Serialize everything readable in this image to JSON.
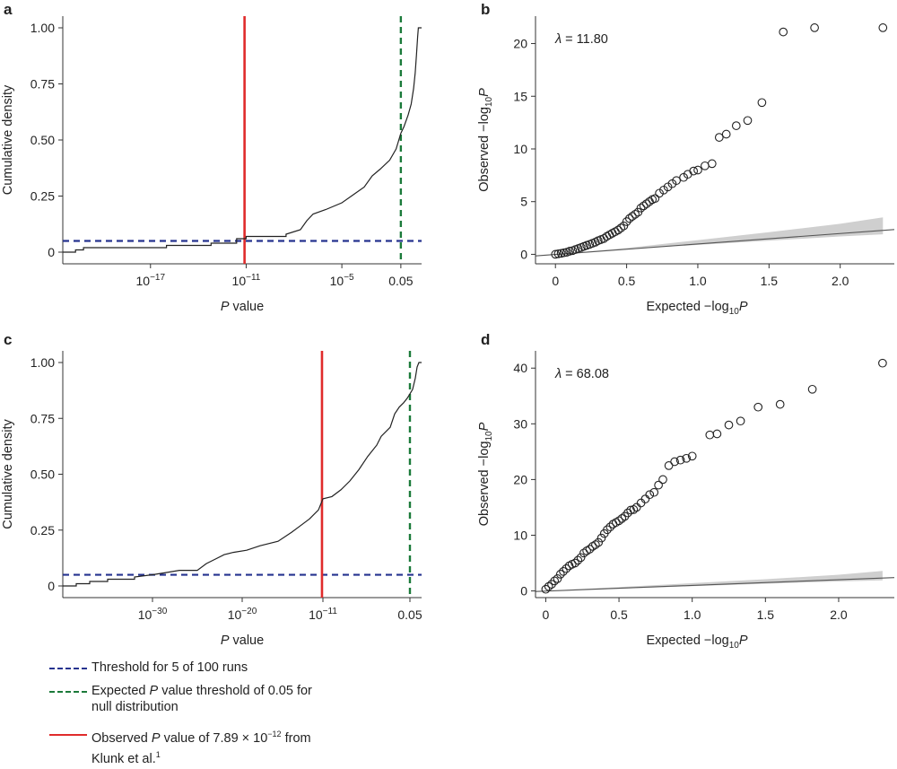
{
  "chart_data": [
    {
      "panel": "a",
      "type": "line",
      "subtype": "empirical-cumulative-distribution",
      "ylabel": "Cumulative density",
      "xlabel_italic": "P",
      "xlabel_rest": " value",
      "x_scale": "log10",
      "xlim_log10": [
        -22.5,
        0
      ],
      "ylim": [
        0,
        1
      ],
      "xticks": [
        {
          "log10": -17,
          "base": "10",
          "exp": "−17"
        },
        {
          "log10": -11,
          "base": "10",
          "exp": "−11"
        },
        {
          "log10": -5,
          "base": "10",
          "exp": "−5"
        },
        {
          "log10": -1.301,
          "base": "0.05",
          "exp": ""
        }
      ],
      "yticks": [
        {
          "value": 0,
          "label": "0"
        },
        {
          "value": 0.25,
          "label": "0.25"
        },
        {
          "value": 0.5,
          "label": "0.50"
        },
        {
          "value": 0.75,
          "label": "0.75"
        },
        {
          "value": 1.0,
          "label": "1.00"
        }
      ],
      "series": [
        {
          "name": "Cumulative density",
          "points": [
            [
              -22.5,
              0
            ],
            [
              -21.7,
              0
            ],
            [
              -21.7,
              0.01
            ],
            [
              -21.2,
              0.01
            ],
            [
              -21.2,
              0.02
            ],
            [
              -16,
              0.02
            ],
            [
              -16,
              0.03
            ],
            [
              -13.2,
              0.03
            ],
            [
              -13.2,
              0.04
            ],
            [
              -11.6,
              0.04
            ],
            [
              -11.6,
              0.06
            ],
            [
              -11,
              0.06
            ],
            [
              -11,
              0.07
            ],
            [
              -8.5,
              0.07
            ],
            [
              -8.5,
              0.08
            ],
            [
              -7.6,
              0.1
            ],
            [
              -7.2,
              0.14
            ],
            [
              -6.8,
              0.17
            ],
            [
              -6,
              0.19
            ],
            [
              -5,
              0.22
            ],
            [
              -4.2,
              0.26
            ],
            [
              -3.6,
              0.29
            ],
            [
              -3.1,
              0.34
            ],
            [
              -2.6,
              0.37
            ],
            [
              -2,
              0.41
            ],
            [
              -1.6,
              0.46
            ],
            [
              -1.3,
              0.53
            ],
            [
              -1.1,
              0.56
            ],
            [
              -0.85,
              0.61
            ],
            [
              -0.65,
              0.66
            ],
            [
              -0.5,
              0.73
            ],
            [
              -0.4,
              0.8
            ],
            [
              -0.32,
              0.88
            ],
            [
              -0.25,
              0.96
            ],
            [
              -0.2,
              1.0
            ],
            [
              0,
              1.0
            ]
          ]
        }
      ],
      "hlines": [
        {
          "y": 0.05,
          "name": "Threshold for 5 of 100 runs",
          "color": "#26338f"
        }
      ],
      "vlines": [
        {
          "x_log10": -11.103,
          "name": "Observed P value of 7.89 × 10−12",
          "color": "#e02b2b",
          "style": "solid"
        },
        {
          "x_log10": -1.301,
          "name": "Expected P value threshold of 0.05",
          "color": "#1b7a3a",
          "style": "dashed"
        }
      ]
    },
    {
      "panel": "b",
      "type": "scatter",
      "subtype": "qq-plot",
      "annotation_symbol": "λ",
      "annotation_value": " = 11.80",
      "xlabel_text": "Expected −log",
      "xlabel_sub": "10",
      "xlabel_italic": "P",
      "ylabel_text": "Observed −log",
      "ylabel_sub": "10",
      "ylabel_italic": "P",
      "xlim": [
        -0.14,
        2.38
      ],
      "ylim": [
        -0.9,
        22.6
      ],
      "xticks": [
        {
          "value": 0,
          "label": "0"
        },
        {
          "value": 0.5,
          "label": "0.5"
        },
        {
          "value": 1.0,
          "label": "1.0"
        },
        {
          "value": 1.5,
          "label": "1.5"
        },
        {
          "value": 2.0,
          "label": "2.0"
        }
      ],
      "yticks": [
        {
          "value": 0,
          "label": "0"
        },
        {
          "value": 5,
          "label": "5"
        },
        {
          "value": 10,
          "label": "10"
        },
        {
          "value": 15,
          "label": "15"
        },
        {
          "value": 20,
          "label": "20"
        }
      ],
      "expected_line": {
        "x": [
          -0.14,
          2.38
        ],
        "y": [
          -0.15,
          2.35
        ]
      },
      "ci_band": {
        "x": [
          0,
          0.5,
          1.0,
          1.5,
          2.0,
          2.3
        ],
        "lower": [
          0,
          0.45,
          0.9,
          1.3,
          1.7,
          1.9
        ],
        "upper": [
          0,
          0.6,
          1.35,
          2.1,
          2.9,
          3.5
        ]
      },
      "points": {
        "x": [
          0.0,
          0.02,
          0.04,
          0.06,
          0.08,
          0.1,
          0.12,
          0.14,
          0.16,
          0.18,
          0.2,
          0.22,
          0.24,
          0.26,
          0.28,
          0.3,
          0.32,
          0.34,
          0.36,
          0.38,
          0.4,
          0.42,
          0.44,
          0.46,
          0.48,
          0.5,
          0.52,
          0.54,
          0.56,
          0.58,
          0.6,
          0.62,
          0.64,
          0.66,
          0.68,
          0.7,
          0.73,
          0.76,
          0.79,
          0.82,
          0.85,
          0.9,
          0.93,
          0.97,
          1.0,
          1.05,
          1.1,
          1.15,
          1.2,
          1.27,
          1.35,
          1.45,
          1.6,
          1.82,
          2.3
        ],
        "y": [
          0.0,
          0.05,
          0.1,
          0.15,
          0.2,
          0.3,
          0.35,
          0.45,
          0.55,
          0.65,
          0.75,
          0.85,
          0.95,
          1.05,
          1.15,
          1.3,
          1.4,
          1.5,
          1.7,
          1.85,
          2.0,
          2.15,
          2.3,
          2.5,
          2.7,
          3.1,
          3.4,
          3.6,
          3.8,
          4.0,
          4.4,
          4.6,
          4.8,
          5.0,
          5.2,
          5.3,
          5.8,
          6.1,
          6.4,
          6.7,
          7.0,
          7.3,
          7.6,
          7.9,
          8.0,
          8.4,
          8.6,
          11.1,
          11.4,
          12.2,
          12.7,
          14.4,
          21.1,
          21.5,
          21.5
        ]
      }
    },
    {
      "panel": "c",
      "type": "line",
      "subtype": "empirical-cumulative-distribution",
      "ylabel": "Cumulative density",
      "xlabel_italic": "P",
      "xlabel_rest": " value",
      "x_scale": "log10",
      "xlim_log10": [
        -40,
        0
      ],
      "ylim": [
        0,
        1
      ],
      "xticks": [
        {
          "log10": -30,
          "base": "10",
          "exp": "−30"
        },
        {
          "log10": -20,
          "base": "10",
          "exp": "−20"
        },
        {
          "log10": -11,
          "base": "10",
          "exp": "−11"
        },
        {
          "log10": -1.301,
          "base": "0.05",
          "exp": ""
        }
      ],
      "yticks": [
        {
          "value": 0,
          "label": "0"
        },
        {
          "value": 0.25,
          "label": "0.25"
        },
        {
          "value": 0.5,
          "label": "0.50"
        },
        {
          "value": 0.75,
          "label": "0.75"
        },
        {
          "value": 1.0,
          "label": "1.00"
        }
      ],
      "series": [
        {
          "name": "Cumulative density",
          "points": [
            [
              -40,
              0
            ],
            [
              -38.5,
              0
            ],
            [
              -38.5,
              0.01
            ],
            [
              -37,
              0.01
            ],
            [
              -37,
              0.02
            ],
            [
              -35,
              0.02
            ],
            [
              -35,
              0.03
            ],
            [
              -32,
              0.03
            ],
            [
              -32,
              0.04
            ],
            [
              -30,
              0.05
            ],
            [
              -28.5,
              0.06
            ],
            [
              -27,
              0.07
            ],
            [
              -25,
              0.07
            ],
            [
              -24,
              0.1
            ],
            [
              -23,
              0.12
            ],
            [
              -22,
              0.14
            ],
            [
              -21,
              0.15
            ],
            [
              -19.5,
              0.16
            ],
            [
              -18,
              0.18
            ],
            [
              -16,
              0.2
            ],
            [
              -14.5,
              0.24
            ],
            [
              -13.5,
              0.27
            ],
            [
              -12.5,
              0.3
            ],
            [
              -11.5,
              0.34
            ],
            [
              -11,
              0.39
            ],
            [
              -10,
              0.4
            ],
            [
              -9,
              0.43
            ],
            [
              -8,
              0.47
            ],
            [
              -7,
              0.52
            ],
            [
              -6,
              0.58
            ],
            [
              -5,
              0.63
            ],
            [
              -4.5,
              0.67
            ],
            [
              -3.5,
              0.71
            ],
            [
              -3,
              0.77
            ],
            [
              -2.5,
              0.8
            ],
            [
              -2,
              0.82
            ],
            [
              -1.6,
              0.84
            ],
            [
              -1.3,
              0.86
            ],
            [
              -1,
              0.88
            ],
            [
              -0.7,
              0.93
            ],
            [
              -0.5,
              0.98
            ],
            [
              -0.3,
              1.0
            ],
            [
              0,
              1.0
            ]
          ]
        }
      ],
      "hlines": [
        {
          "y": 0.05,
          "name": "Threshold for 5 of 100 runs",
          "color": "#26338f"
        }
      ],
      "vlines": [
        {
          "x_log10": -11.103,
          "name": "Observed P value of 7.89 × 10−12",
          "color": "#e02b2b",
          "style": "solid"
        },
        {
          "x_log10": -1.301,
          "name": "Expected P value threshold of 0.05",
          "color": "#1b7a3a",
          "style": "dashed"
        }
      ]
    },
    {
      "panel": "d",
      "type": "scatter",
      "subtype": "qq-plot",
      "annotation_symbol": "λ",
      "annotation_value": " = 68.08",
      "xlabel_text": "Expected −log",
      "xlabel_sub": "10",
      "xlabel_italic": "P",
      "ylabel_text": "Observed −log",
      "ylabel_sub": "10",
      "ylabel_italic": "P",
      "xlim": [
        -0.07,
        2.38
      ],
      "ylim": [
        -1.2,
        43.1
      ],
      "xticks": [
        {
          "value": 0,
          "label": "0"
        },
        {
          "value": 0.5,
          "label": "0.5"
        },
        {
          "value": 1.0,
          "label": "1.0"
        },
        {
          "value": 1.5,
          "label": "1.5"
        },
        {
          "value": 2.0,
          "label": "2.0"
        }
      ],
      "yticks": [
        {
          "value": 0,
          "label": "0"
        },
        {
          "value": 10,
          "label": "10"
        },
        {
          "value": 20,
          "label": "20"
        },
        {
          "value": 30,
          "label": "30"
        },
        {
          "value": 40,
          "label": "40"
        }
      ],
      "expected_line": {
        "x": [
          -0.07,
          2.38
        ],
        "y": [
          -0.1,
          2.4
        ]
      },
      "ci_band": {
        "x": [
          0,
          0.5,
          1.0,
          1.5,
          2.0,
          2.3
        ],
        "lower": [
          0,
          0.4,
          0.85,
          1.3,
          1.7,
          1.9
        ],
        "upper": [
          0,
          0.7,
          1.4,
          2.1,
          2.9,
          3.6
        ]
      },
      "points": {
        "x": [
          0.0,
          0.02,
          0.04,
          0.06,
          0.08,
          0.1,
          0.12,
          0.14,
          0.16,
          0.18,
          0.2,
          0.22,
          0.24,
          0.26,
          0.28,
          0.3,
          0.32,
          0.34,
          0.36,
          0.38,
          0.4,
          0.42,
          0.44,
          0.46,
          0.48,
          0.5,
          0.52,
          0.54,
          0.56,
          0.58,
          0.6,
          0.62,
          0.65,
          0.68,
          0.71,
          0.74,
          0.77,
          0.8,
          0.84,
          0.88,
          0.92,
          0.96,
          1.0,
          1.12,
          1.17,
          1.25,
          1.33,
          1.45,
          1.6,
          1.82,
          2.3
        ],
        "y": [
          0.3,
          0.8,
          1.2,
          1.8,
          2.2,
          3.0,
          3.5,
          4.0,
          4.5,
          4.8,
          5.0,
          5.5,
          6.0,
          6.8,
          7.2,
          7.5,
          8.0,
          8.3,
          8.7,
          9.5,
          10.3,
          11.0,
          11.5,
          12.0,
          12.3,
          12.6,
          13.0,
          13.4,
          14.0,
          14.5,
          14.6,
          15.0,
          15.8,
          16.5,
          17.3,
          17.7,
          19.0,
          20.0,
          22.5,
          23.2,
          23.5,
          23.8,
          24.2,
          28.0,
          28.2,
          29.8,
          30.5,
          33.0,
          33.5,
          36.2,
          40.9
        ]
      }
    }
  ],
  "panel_labels": [
    "a",
    "b",
    "c",
    "d"
  ],
  "legend": [
    {
      "text": "Threshold for 5 of 100 runs",
      "color": "#26338f"
    },
    {
      "line1": "Expected ",
      "italic": "P",
      "line1_rest": " value threshold of 0.05 for",
      "line2": "null distribution",
      "color": "#1b7a3a"
    },
    {
      "line1": "Observed ",
      "italic": "P",
      "line1_rest": " value of 7.89 × 10",
      "sup": "−12",
      "line1_end": " from",
      "line2": "Klunk et al.",
      "line2_sup": "1",
      "color": "#e02b2b"
    }
  ]
}
